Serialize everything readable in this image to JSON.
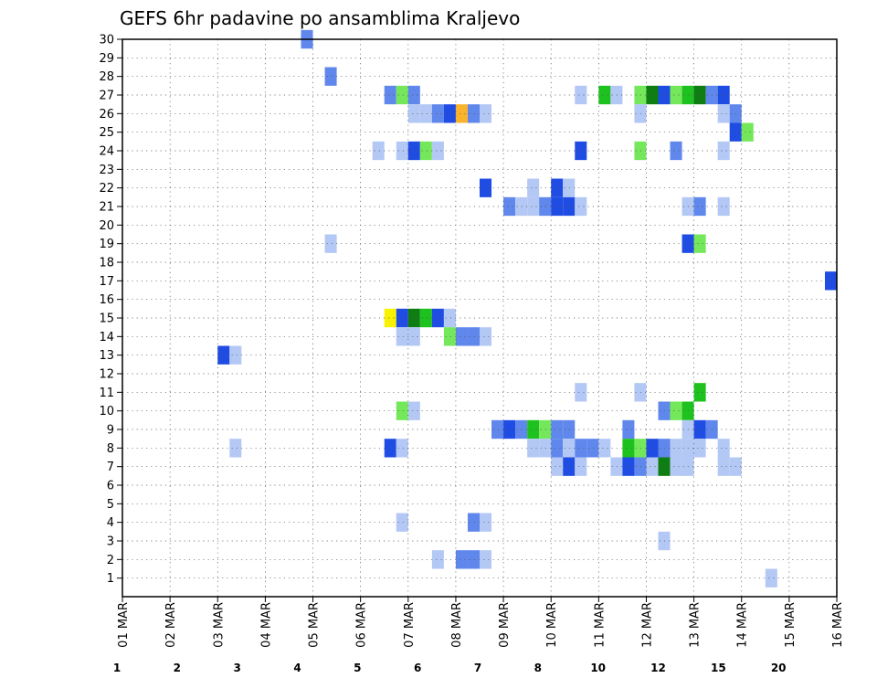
{
  "chart_data": {
    "type": "heatmap",
    "title": "GEFS 6hr padavine po ansamblima Kraljevo",
    "xlabel": "",
    "ylabel": "",
    "x_ticks": [
      "01 MAR",
      "02 MAR",
      "03 MAR",
      "04 MAR",
      "05 MAR",
      "06 MAR",
      "07 MAR",
      "08 MAR",
      "09 MAR",
      "10 MAR",
      "11 MAR",
      "12 MAR",
      "13 MAR",
      "14 MAR",
      "15 MAR",
      "16 MAR"
    ],
    "y_ticks": [
      1,
      2,
      3,
      4,
      5,
      6,
      7,
      8,
      9,
      10,
      11,
      12,
      13,
      14,
      15,
      16,
      17,
      18,
      19,
      20,
      21,
      22,
      23,
      24,
      25,
      26,
      27,
      28,
      29,
      30
    ],
    "xlim_days": [
      1,
      16
    ],
    "ylim": [
      0,
      30
    ],
    "step_days": 0.25,
    "grid": true,
    "legend": {
      "placement": "bottom",
      "labels": [
        "1",
        "2",
        "3",
        "4",
        "5",
        "6",
        "7",
        "8",
        "10",
        "12",
        "15",
        "20"
      ],
      "colors": [
        "#b4c8f5",
        "#5f87ec",
        "#1f4ce3",
        "#74e85a",
        "#1ec21e",
        "#0e7d12",
        "#f8f200",
        "#f9b42c",
        "#f57a0c",
        "#e3301a",
        "#b2150c",
        "#6c0606"
      ]
    },
    "level_colors": {
      "1": "#b4c8f5",
      "2": "#5f87ec",
      "3": "#1f4ce3",
      "4": "#74e85a",
      "5": "#1ec21e",
      "6": "#0e7d12",
      "7": "#f8f200",
      "8": "#f9b42c"
    },
    "cells": [
      {
        "member": 30,
        "day": 4.75,
        "level": 2
      },
      {
        "member": 28,
        "day": 5.25,
        "level": 2
      },
      {
        "member": 27,
        "day": 6.5,
        "level": 2
      },
      {
        "member": 27,
        "day": 6.75,
        "level": 4
      },
      {
        "member": 27,
        "day": 7.0,
        "level": 2
      },
      {
        "member": 27,
        "day": 10.5,
        "level": 1
      },
      {
        "member": 27,
        "day": 11.0,
        "level": 5
      },
      {
        "member": 27,
        "day": 11.25,
        "level": 1
      },
      {
        "member": 27,
        "day": 11.75,
        "level": 4
      },
      {
        "member": 27,
        "day": 12.0,
        "level": 6
      },
      {
        "member": 27,
        "day": 12.25,
        "level": 3
      },
      {
        "member": 27,
        "day": 12.5,
        "level": 4
      },
      {
        "member": 27,
        "day": 12.75,
        "level": 5
      },
      {
        "member": 27,
        "day": 13.0,
        "level": 6
      },
      {
        "member": 27,
        "day": 13.25,
        "level": 2
      },
      {
        "member": 27,
        "day": 13.5,
        "level": 3
      },
      {
        "member": 26,
        "day": 7.0,
        "level": 1
      },
      {
        "member": 26,
        "day": 7.25,
        "level": 1
      },
      {
        "member": 26,
        "day": 7.5,
        "level": 2
      },
      {
        "member": 26,
        "day": 7.75,
        "level": 3
      },
      {
        "member": 26,
        "day": 8.0,
        "level": 8
      },
      {
        "member": 26,
        "day": 8.25,
        "level": 2
      },
      {
        "member": 26,
        "day": 8.5,
        "level": 1
      },
      {
        "member": 26,
        "day": 11.75,
        "level": 1
      },
      {
        "member": 26,
        "day": 13.5,
        "level": 1
      },
      {
        "member": 26,
        "day": 13.75,
        "level": 2
      },
      {
        "member": 25,
        "day": 13.75,
        "level": 3
      },
      {
        "member": 25,
        "day": 14.0,
        "level": 4
      },
      {
        "member": 24,
        "day": 6.25,
        "level": 1
      },
      {
        "member": 24,
        "day": 6.75,
        "level": 1
      },
      {
        "member": 24,
        "day": 7.0,
        "level": 3
      },
      {
        "member": 24,
        "day": 7.25,
        "level": 4
      },
      {
        "member": 24,
        "day": 7.5,
        "level": 1
      },
      {
        "member": 24,
        "day": 10.5,
        "level": 3
      },
      {
        "member": 24,
        "day": 11.75,
        "level": 4
      },
      {
        "member": 24,
        "day": 12.5,
        "level": 2
      },
      {
        "member": 24,
        "day": 13.5,
        "level": 1
      },
      {
        "member": 22,
        "day": 8.5,
        "level": 3
      },
      {
        "member": 22,
        "day": 9.5,
        "level": 1
      },
      {
        "member": 22,
        "day": 10.0,
        "level": 3
      },
      {
        "member": 22,
        "day": 10.25,
        "level": 1
      },
      {
        "member": 21,
        "day": 9.0,
        "level": 2
      },
      {
        "member": 21,
        "day": 9.25,
        "level": 1
      },
      {
        "member": 21,
        "day": 9.5,
        "level": 1
      },
      {
        "member": 21,
        "day": 9.75,
        "level": 2
      },
      {
        "member": 21,
        "day": 10.0,
        "level": 3
      },
      {
        "member": 21,
        "day": 10.25,
        "level": 3
      },
      {
        "member": 21,
        "day": 10.5,
        "level": 1
      },
      {
        "member": 21,
        "day": 12.75,
        "level": 1
      },
      {
        "member": 21,
        "day": 13.0,
        "level": 2
      },
      {
        "member": 21,
        "day": 13.5,
        "level": 1
      },
      {
        "member": 19,
        "day": 5.25,
        "level": 1
      },
      {
        "member": 19,
        "day": 12.75,
        "level": 3
      },
      {
        "member": 19,
        "day": 13.0,
        "level": 4
      },
      {
        "member": 17,
        "day": 15.75,
        "level": 3
      },
      {
        "member": 15,
        "day": 6.5,
        "level": 7
      },
      {
        "member": 15,
        "day": 6.75,
        "level": 3
      },
      {
        "member": 15,
        "day": 7.0,
        "level": 6
      },
      {
        "member": 15,
        "day": 7.25,
        "level": 5
      },
      {
        "member": 15,
        "day": 7.5,
        "level": 3
      },
      {
        "member": 15,
        "day": 7.75,
        "level": 1
      },
      {
        "member": 14,
        "day": 6.75,
        "level": 1
      },
      {
        "member": 14,
        "day": 7.0,
        "level": 1
      },
      {
        "member": 14,
        "day": 7.75,
        "level": 4
      },
      {
        "member": 14,
        "day": 8.0,
        "level": 2
      },
      {
        "member": 14,
        "day": 8.25,
        "level": 2
      },
      {
        "member": 14,
        "day": 8.5,
        "level": 1
      },
      {
        "member": 13,
        "day": 3.0,
        "level": 3
      },
      {
        "member": 13,
        "day": 3.25,
        "level": 1
      },
      {
        "member": 11,
        "day": 10.5,
        "level": 1
      },
      {
        "member": 11,
        "day": 11.75,
        "level": 1
      },
      {
        "member": 11,
        "day": 13.0,
        "level": 5
      },
      {
        "member": 10,
        "day": 6.75,
        "level": 4
      },
      {
        "member": 10,
        "day": 7.0,
        "level": 1
      },
      {
        "member": 10,
        "day": 12.25,
        "level": 2
      },
      {
        "member": 10,
        "day": 12.5,
        "level": 4
      },
      {
        "member": 10,
        "day": 12.75,
        "level": 5
      },
      {
        "member": 9,
        "day": 8.75,
        "level": 2
      },
      {
        "member": 9,
        "day": 9.0,
        "level": 3
      },
      {
        "member": 9,
        "day": 9.25,
        "level": 2
      },
      {
        "member": 9,
        "day": 9.5,
        "level": 5
      },
      {
        "member": 9,
        "day": 9.75,
        "level": 4
      },
      {
        "member": 9,
        "day": 10.0,
        "level": 2
      },
      {
        "member": 9,
        "day": 10.25,
        "level": 2
      },
      {
        "member": 9,
        "day": 11.5,
        "level": 2
      },
      {
        "member": 9,
        "day": 12.75,
        "level": 1
      },
      {
        "member": 9,
        "day": 13.0,
        "level": 3
      },
      {
        "member": 9,
        "day": 13.25,
        "level": 2
      },
      {
        "member": 8,
        "day": 3.25,
        "level": 1
      },
      {
        "member": 8,
        "day": 6.5,
        "level": 3
      },
      {
        "member": 8,
        "day": 6.75,
        "level": 1
      },
      {
        "member": 8,
        "day": 9.5,
        "level": 1
      },
      {
        "member": 8,
        "day": 9.75,
        "level": 1
      },
      {
        "member": 8,
        "day": 10.0,
        "level": 2
      },
      {
        "member": 8,
        "day": 10.25,
        "level": 1
      },
      {
        "member": 8,
        "day": 10.5,
        "level": 2
      },
      {
        "member": 8,
        "day": 10.75,
        "level": 2
      },
      {
        "member": 8,
        "day": 11.0,
        "level": 1
      },
      {
        "member": 8,
        "day": 11.5,
        "level": 5
      },
      {
        "member": 8,
        "day": 11.75,
        "level": 4
      },
      {
        "member": 8,
        "day": 12.0,
        "level": 3
      },
      {
        "member": 8,
        "day": 12.25,
        "level": 2
      },
      {
        "member": 8,
        "day": 12.5,
        "level": 1
      },
      {
        "member": 8,
        "day": 12.75,
        "level": 1
      },
      {
        "member": 8,
        "day": 13.0,
        "level": 1
      },
      {
        "member": 8,
        "day": 13.5,
        "level": 1
      },
      {
        "member": 7,
        "day": 10.0,
        "level": 1
      },
      {
        "member": 7,
        "day": 10.25,
        "level": 3
      },
      {
        "member": 7,
        "day": 10.5,
        "level": 1
      },
      {
        "member": 7,
        "day": 11.25,
        "level": 1
      },
      {
        "member": 7,
        "day": 11.5,
        "level": 3
      },
      {
        "member": 7,
        "day": 11.75,
        "level": 2
      },
      {
        "member": 7,
        "day": 12.0,
        "level": 1
      },
      {
        "member": 7,
        "day": 12.25,
        "level": 6
      },
      {
        "member": 7,
        "day": 12.5,
        "level": 1
      },
      {
        "member": 7,
        "day": 12.75,
        "level": 1
      },
      {
        "member": 7,
        "day": 13.5,
        "level": 1
      },
      {
        "member": 7,
        "day": 13.75,
        "level": 1
      },
      {
        "member": 4,
        "day": 6.75,
        "level": 1
      },
      {
        "member": 4,
        "day": 8.25,
        "level": 2
      },
      {
        "member": 4,
        "day": 8.5,
        "level": 1
      },
      {
        "member": 3,
        "day": 12.25,
        "level": 1
      },
      {
        "member": 2,
        "day": 7.5,
        "level": 1
      },
      {
        "member": 2,
        "day": 8.0,
        "level": 2
      },
      {
        "member": 2,
        "day": 8.25,
        "level": 2
      },
      {
        "member": 2,
        "day": 8.5,
        "level": 1
      },
      {
        "member": 1,
        "day": 14.5,
        "level": 1
      }
    ]
  }
}
